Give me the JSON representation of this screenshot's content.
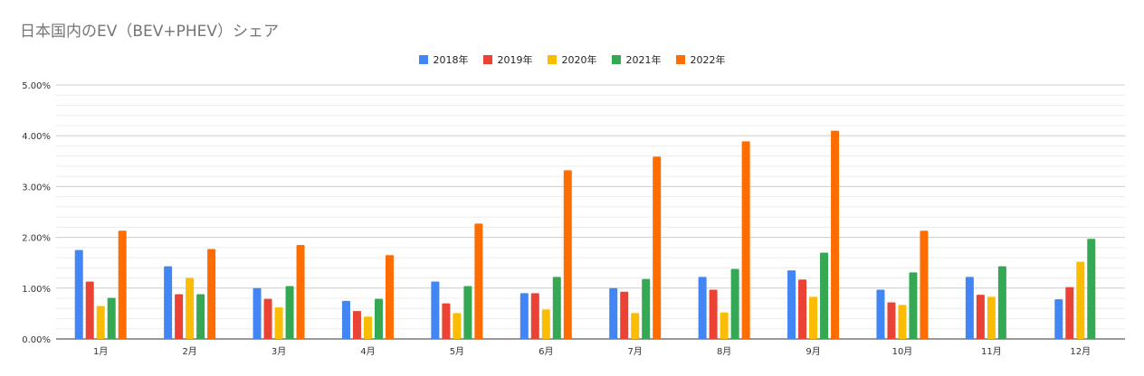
{
  "chart_data": {
    "type": "bar",
    "title": "日本国内のEV（BEV+PHEV）シェア",
    "categories": [
      "1月",
      "2月",
      "3月",
      "4月",
      "5月",
      "6月",
      "7月",
      "8月",
      "9月",
      "10月",
      "11月",
      "12月"
    ],
    "series": [
      {
        "name": "2018年",
        "color": "#4285f4",
        "values": [
          1.75,
          1.43,
          1.0,
          0.75,
          1.13,
          0.9,
          1.0,
          1.22,
          1.35,
          0.97,
          1.22,
          0.78
        ]
      },
      {
        "name": "2019年",
        "color": "#ea4335",
        "values": [
          1.13,
          0.88,
          0.79,
          0.55,
          0.7,
          0.9,
          0.93,
          0.97,
          1.17,
          0.72,
          0.87,
          1.02
        ]
      },
      {
        "name": "2020年",
        "color": "#fbbc04",
        "values": [
          0.65,
          1.2,
          0.62,
          0.44,
          0.51,
          0.58,
          0.51,
          0.52,
          0.83,
          0.67,
          0.83,
          1.52
        ]
      },
      {
        "name": "2021年",
        "color": "#34a853",
        "values": [
          0.81,
          0.88,
          1.04,
          0.79,
          1.04,
          1.22,
          1.18,
          1.38,
          1.7,
          1.31,
          1.43,
          1.97
        ]
      },
      {
        "name": "2022年",
        "color": "#ff6d01",
        "values": [
          2.13,
          1.77,
          1.85,
          1.65,
          2.27,
          3.32,
          3.59,
          3.89,
          4.1,
          2.13,
          null,
          null
        ]
      }
    ],
    "ylim": [
      0,
      5
    ],
    "yticks": [
      "0.00%",
      "1.00%",
      "2.00%",
      "3.00%",
      "4.00%",
      "5.00%"
    ],
    "grid": true,
    "legend_position": "top"
  }
}
